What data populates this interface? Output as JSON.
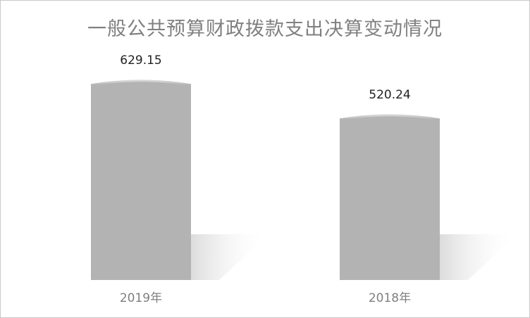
{
  "chart_data": {
    "type": "bar",
    "title": "一般公共预算财政拨款支出决算变动情况",
    "categories": [
      "2019年",
      "2018年"
    ],
    "values": [
      629.15,
      520.24
    ],
    "data_labels": [
      "629.15",
      "520.24"
    ],
    "xlabel": "",
    "ylabel": "",
    "ylim": [
      0,
      700
    ],
    "grid": false,
    "legend": "none",
    "bar_style": "cylinder",
    "colors": {
      "bar": "#b2b3b2",
      "shadow": "#e3e3e3",
      "title": "#808080",
      "tick": "#7f7f7f"
    }
  }
}
